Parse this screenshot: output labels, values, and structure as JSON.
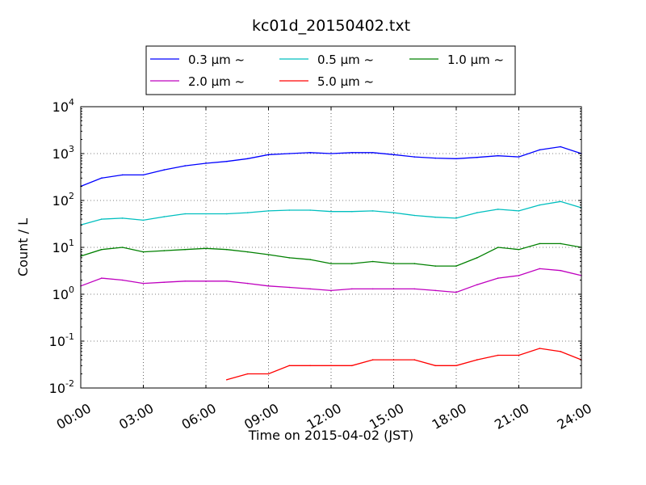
{
  "chart_data": {
    "type": "line",
    "title": "kc01d_20150402.txt",
    "xlabel": "Time on 2015-04-02 (JST)",
    "ylabel": "Count / L",
    "yscale": "log",
    "xlim": [
      0,
      24
    ],
    "ylim": [
      0.01,
      10000
    ],
    "grid": true,
    "legend_position": "top-center, outside plot",
    "x_ticks": [
      {
        "value": 0,
        "label": "00:00"
      },
      {
        "value": 3,
        "label": "03:00"
      },
      {
        "value": 6,
        "label": "06:00"
      },
      {
        "value": 9,
        "label": "09:00"
      },
      {
        "value": 12,
        "label": "12:00"
      },
      {
        "value": 15,
        "label": "15:00"
      },
      {
        "value": 18,
        "label": "18:00"
      },
      {
        "value": 21,
        "label": "21:00"
      },
      {
        "value": 24,
        "label": "24:00"
      }
    ],
    "y_ticks": [
      {
        "value": 0.01,
        "base": "10",
        "exp": "-2"
      },
      {
        "value": 0.1,
        "base": "10",
        "exp": "-1"
      },
      {
        "value": 1,
        "base": "10",
        "exp": "0"
      },
      {
        "value": 10,
        "base": "10",
        "exp": "1"
      },
      {
        "value": 100,
        "base": "10",
        "exp": "2"
      },
      {
        "value": 1000,
        "base": "10",
        "exp": "3"
      },
      {
        "value": 10000,
        "base": "10",
        "exp": "4"
      }
    ],
    "x_hours": [
      0,
      1,
      2,
      3,
      4,
      5,
      6,
      7,
      8,
      9,
      10,
      11,
      12,
      13,
      14,
      15,
      16,
      17,
      18,
      19,
      20,
      21,
      22,
      23,
      24
    ],
    "series": [
      {
        "name": "0.3 μm ~",
        "color": "#0000ff",
        "values": [
          200,
          300,
          350,
          350,
          450,
          550,
          620,
          680,
          780,
          950,
          1000,
          1050,
          1000,
          1050,
          1050,
          950,
          850,
          800,
          780,
          830,
          900,
          850,
          1200,
          1400,
          1000
        ]
      },
      {
        "name": "0.5 μm ~",
        "color": "#00bfbf",
        "values": [
          30,
          40,
          42,
          38,
          45,
          52,
          52,
          52,
          55,
          60,
          62,
          62,
          58,
          58,
          60,
          55,
          48,
          44,
          42,
          55,
          65,
          60,
          80,
          95,
          70
        ]
      },
      {
        "name": "1.0 μm ~",
        "color": "#008000",
        "values": [
          6.5,
          9,
          10,
          8,
          8.5,
          9,
          9.5,
          9,
          8,
          7,
          6,
          5.5,
          4.5,
          4.5,
          5,
          4.5,
          4.5,
          4,
          4,
          6,
          10,
          9,
          12,
          12,
          10
        ]
      },
      {
        "name": "2.0 μm ~",
        "color": "#bf00bf",
        "values": [
          1.5,
          2.2,
          2,
          1.7,
          1.8,
          1.9,
          1.9,
          1.9,
          1.7,
          1.5,
          1.4,
          1.3,
          1.2,
          1.3,
          1.3,
          1.3,
          1.3,
          1.2,
          1.1,
          1.6,
          2.2,
          2.5,
          3.5,
          3.2,
          2.5
        ]
      },
      {
        "name": "5.0 μm ~",
        "color": "#ff0000",
        "values": [
          null,
          null,
          null,
          null,
          null,
          null,
          null,
          0.015,
          0.02,
          0.02,
          0.03,
          0.03,
          0.03,
          0.03,
          0.04,
          0.04,
          0.04,
          0.03,
          0.03,
          0.04,
          0.05,
          0.05,
          0.07,
          0.06,
          0.04
        ]
      }
    ]
  }
}
